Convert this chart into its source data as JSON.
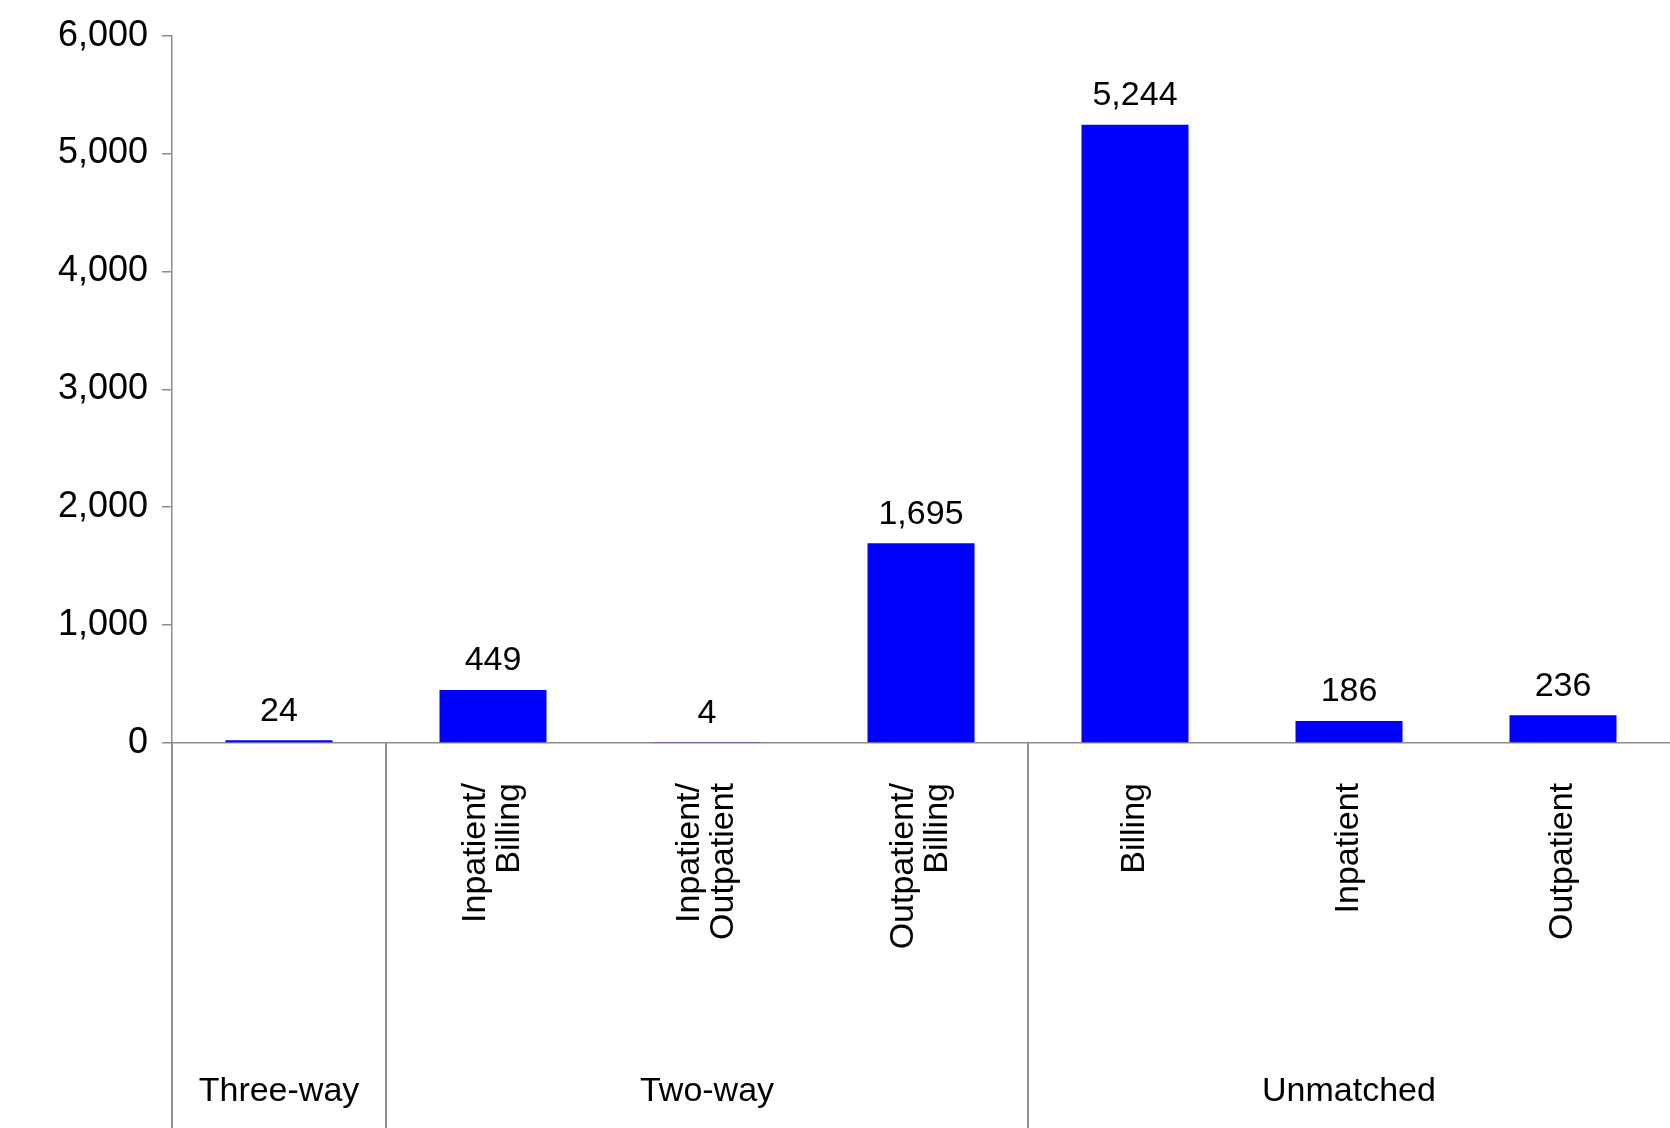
{
  "chart_data": {
    "type": "bar",
    "categories": [
      null,
      "Inpatient/ Billing",
      "Inpatient/ Outpatient",
      "Outpatient/ Billing",
      "Billing",
      "Inpatient",
      "Outpatient"
    ],
    "values": [
      24,
      449,
      4,
      1695,
      5244,
      186,
      236
    ],
    "color": "#0000ff",
    "ylim": [
      0,
      6000
    ],
    "yticks": [
      {
        "value": 0,
        "label": "0"
      },
      {
        "value": 1000,
        "label": "1,000"
      },
      {
        "value": 2000,
        "label": "2,000"
      },
      {
        "value": 3000,
        "label": "3,000"
      },
      {
        "value": 4000,
        "label": "4,000"
      },
      {
        "value": 5000,
        "label": "5,000"
      },
      {
        "value": 6000,
        "label": "6,000"
      }
    ],
    "value_labels": [
      "24",
      "449",
      "4",
      "1,695",
      "5,244",
      "186",
      "236"
    ],
    "annotations": [
      "Three-way",
      "Two-way",
      "Unmatched"
    ],
    "grid": false,
    "legend": false
  }
}
